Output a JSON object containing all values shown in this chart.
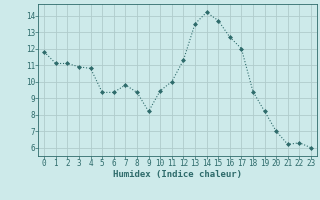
{
  "x": [
    0,
    1,
    2,
    3,
    4,
    5,
    6,
    7,
    8,
    9,
    10,
    11,
    12,
    13,
    14,
    15,
    16,
    17,
    18,
    19,
    20,
    21,
    22,
    23
  ],
  "y": [
    11.8,
    11.1,
    11.1,
    10.9,
    10.8,
    9.35,
    9.35,
    9.8,
    9.35,
    8.2,
    9.45,
    10.0,
    11.3,
    13.5,
    14.2,
    13.7,
    12.7,
    12.0,
    9.4,
    8.2,
    7.0,
    6.2,
    6.3,
    6.0
  ],
  "xlabel": "Humidex (Indice chaleur)",
  "xlim": [
    -0.5,
    23.5
  ],
  "ylim": [
    5.5,
    14.7
  ],
  "yticks": [
    6,
    7,
    8,
    9,
    10,
    11,
    12,
    13,
    14
  ],
  "xticks": [
    0,
    1,
    2,
    3,
    4,
    5,
    6,
    7,
    8,
    9,
    10,
    11,
    12,
    13,
    14,
    15,
    16,
    17,
    18,
    19,
    20,
    21,
    22,
    23
  ],
  "line_color": "#2e6b6b",
  "marker": "D",
  "marker_size": 2.0,
  "bg_color": "#cdeaea",
  "grid_color": "#b0cccc",
  "tick_label_color": "#2e6b6b",
  "xlabel_color": "#2e6b6b",
  "font_family": "monospace",
  "tick_fontsize": 5.5,
  "xlabel_fontsize": 6.5
}
